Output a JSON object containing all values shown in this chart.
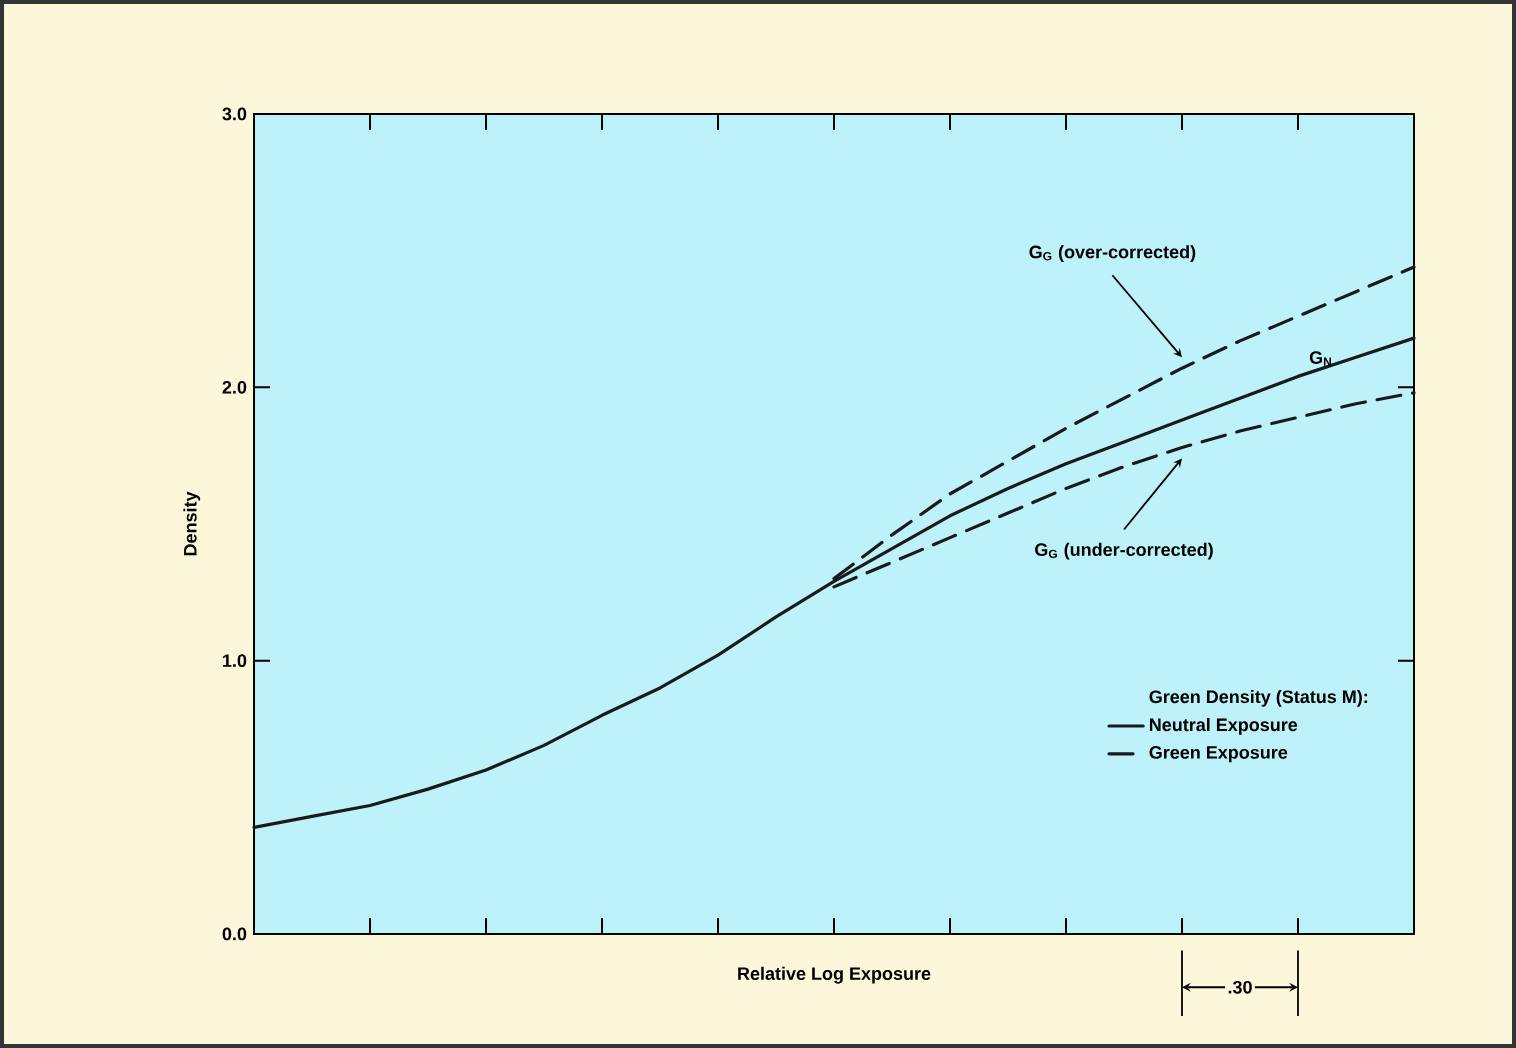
{
  "chart_data": {
    "type": "line",
    "xlabel": "Relative Log Exposure",
    "ylabel": "Density",
    "legend_title": "Green Density (Status M):",
    "categories": [
      null,
      null,
      null,
      null,
      null,
      null,
      null,
      null,
      null,
      null,
      null,
      null,
      null,
      null,
      null,
      null,
      null,
      null,
      null,
      null,
      null
    ],
    "ylim": [
      0,
      3.0
    ],
    "yticks": [
      {
        "value": 0,
        "label": "0.0"
      },
      {
        "value": 1,
        "label": "1.0"
      },
      {
        "value": 2,
        "label": "2.0"
      },
      {
        "value": 3,
        "label": "3.0"
      }
    ],
    "tick_labels": "y",
    "legend": "bottom right",
    "marker": "none",
    "series": [
      {
        "name": "Neutral Exposure",
        "color": "#1a1a1a",
        "line_style": "solid",
        "values": [
          0.39,
          0.43,
          0.47,
          0.53,
          0.6,
          0.69,
          0.8,
          0.9,
          1.02,
          1.16,
          1.29,
          1.41,
          1.53,
          1.63,
          1.72,
          1.8,
          1.88,
          1.96,
          2.04,
          2.11,
          2.18
        ]
      },
      {
        "name": "Green Exposure",
        "color": "#1a1a1a",
        "line_style": "dashed",
        "values": [
          null,
          null,
          null,
          null,
          null,
          null,
          null,
          null,
          null,
          null,
          1.3,
          1.46,
          1.61,
          1.73,
          1.85,
          1.96,
          2.07,
          2.17,
          2.26,
          2.35,
          2.44
        ]
      },
      {
        "color": "#1a1a1a",
        "line_style": "dashed",
        "values": [
          null,
          null,
          null,
          null,
          null,
          null,
          null,
          null,
          null,
          null,
          1.27,
          1.36,
          1.45,
          1.54,
          1.63,
          1.71,
          1.78,
          1.84,
          1.89,
          1.94,
          1.98
        ]
      }
    ],
    "annotations": [
      "G$_{G}$ (over-corrected)",
      "G$_{N}$",
      "G$_{G}$ (under-corrected)",
      ".30"
    ]
  }
}
